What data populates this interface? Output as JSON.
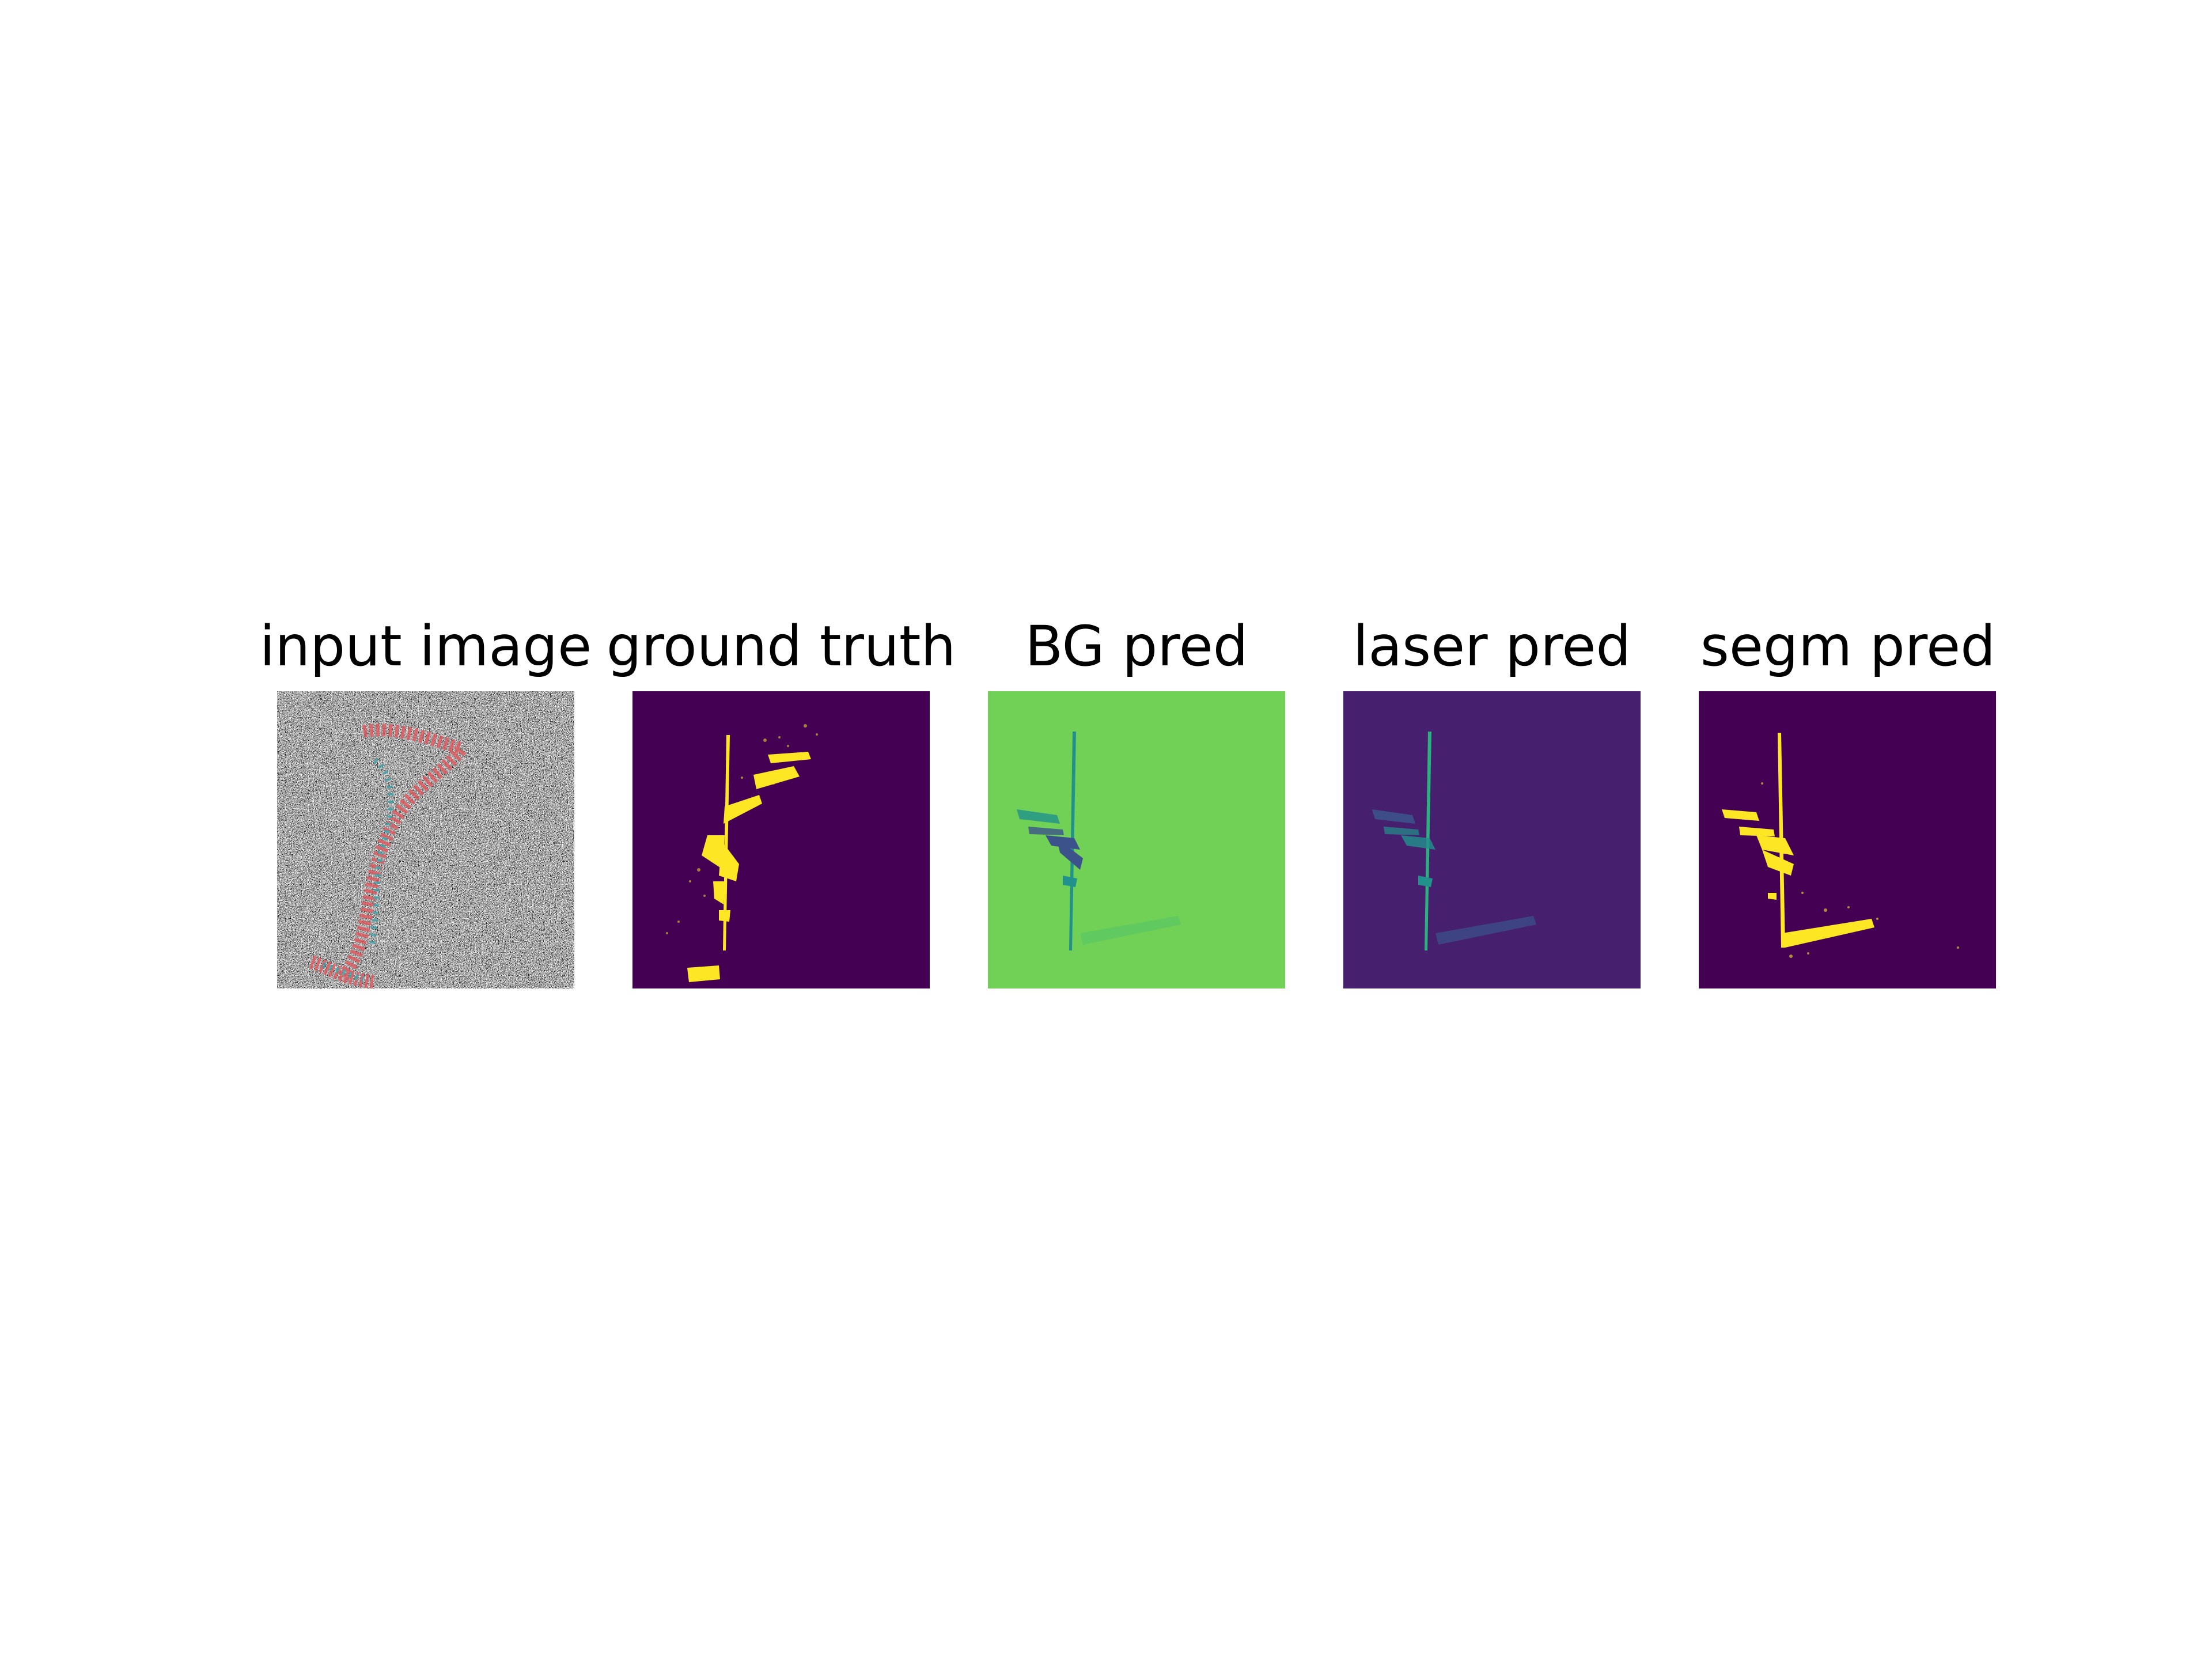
{
  "panels": [
    {
      "id": "input",
      "title": "input image"
    },
    {
      "id": "gt",
      "title": "ground truth"
    },
    {
      "id": "bg",
      "title": "BG pred"
    },
    {
      "id": "laser",
      "title": "laser pred"
    },
    {
      "id": "segm",
      "title": "segm pred"
    }
  ],
  "colors": {
    "viridis_dark": "#440154",
    "viridis_indigo": "#46206f",
    "viridis_teal": "#21918c",
    "viridis_blue": "#3b528b",
    "viridis_green": "#71d056",
    "viridis_yellow": "#fde725",
    "noise_red": "#e0585e",
    "noise_teal": "#3aa1a8"
  }
}
